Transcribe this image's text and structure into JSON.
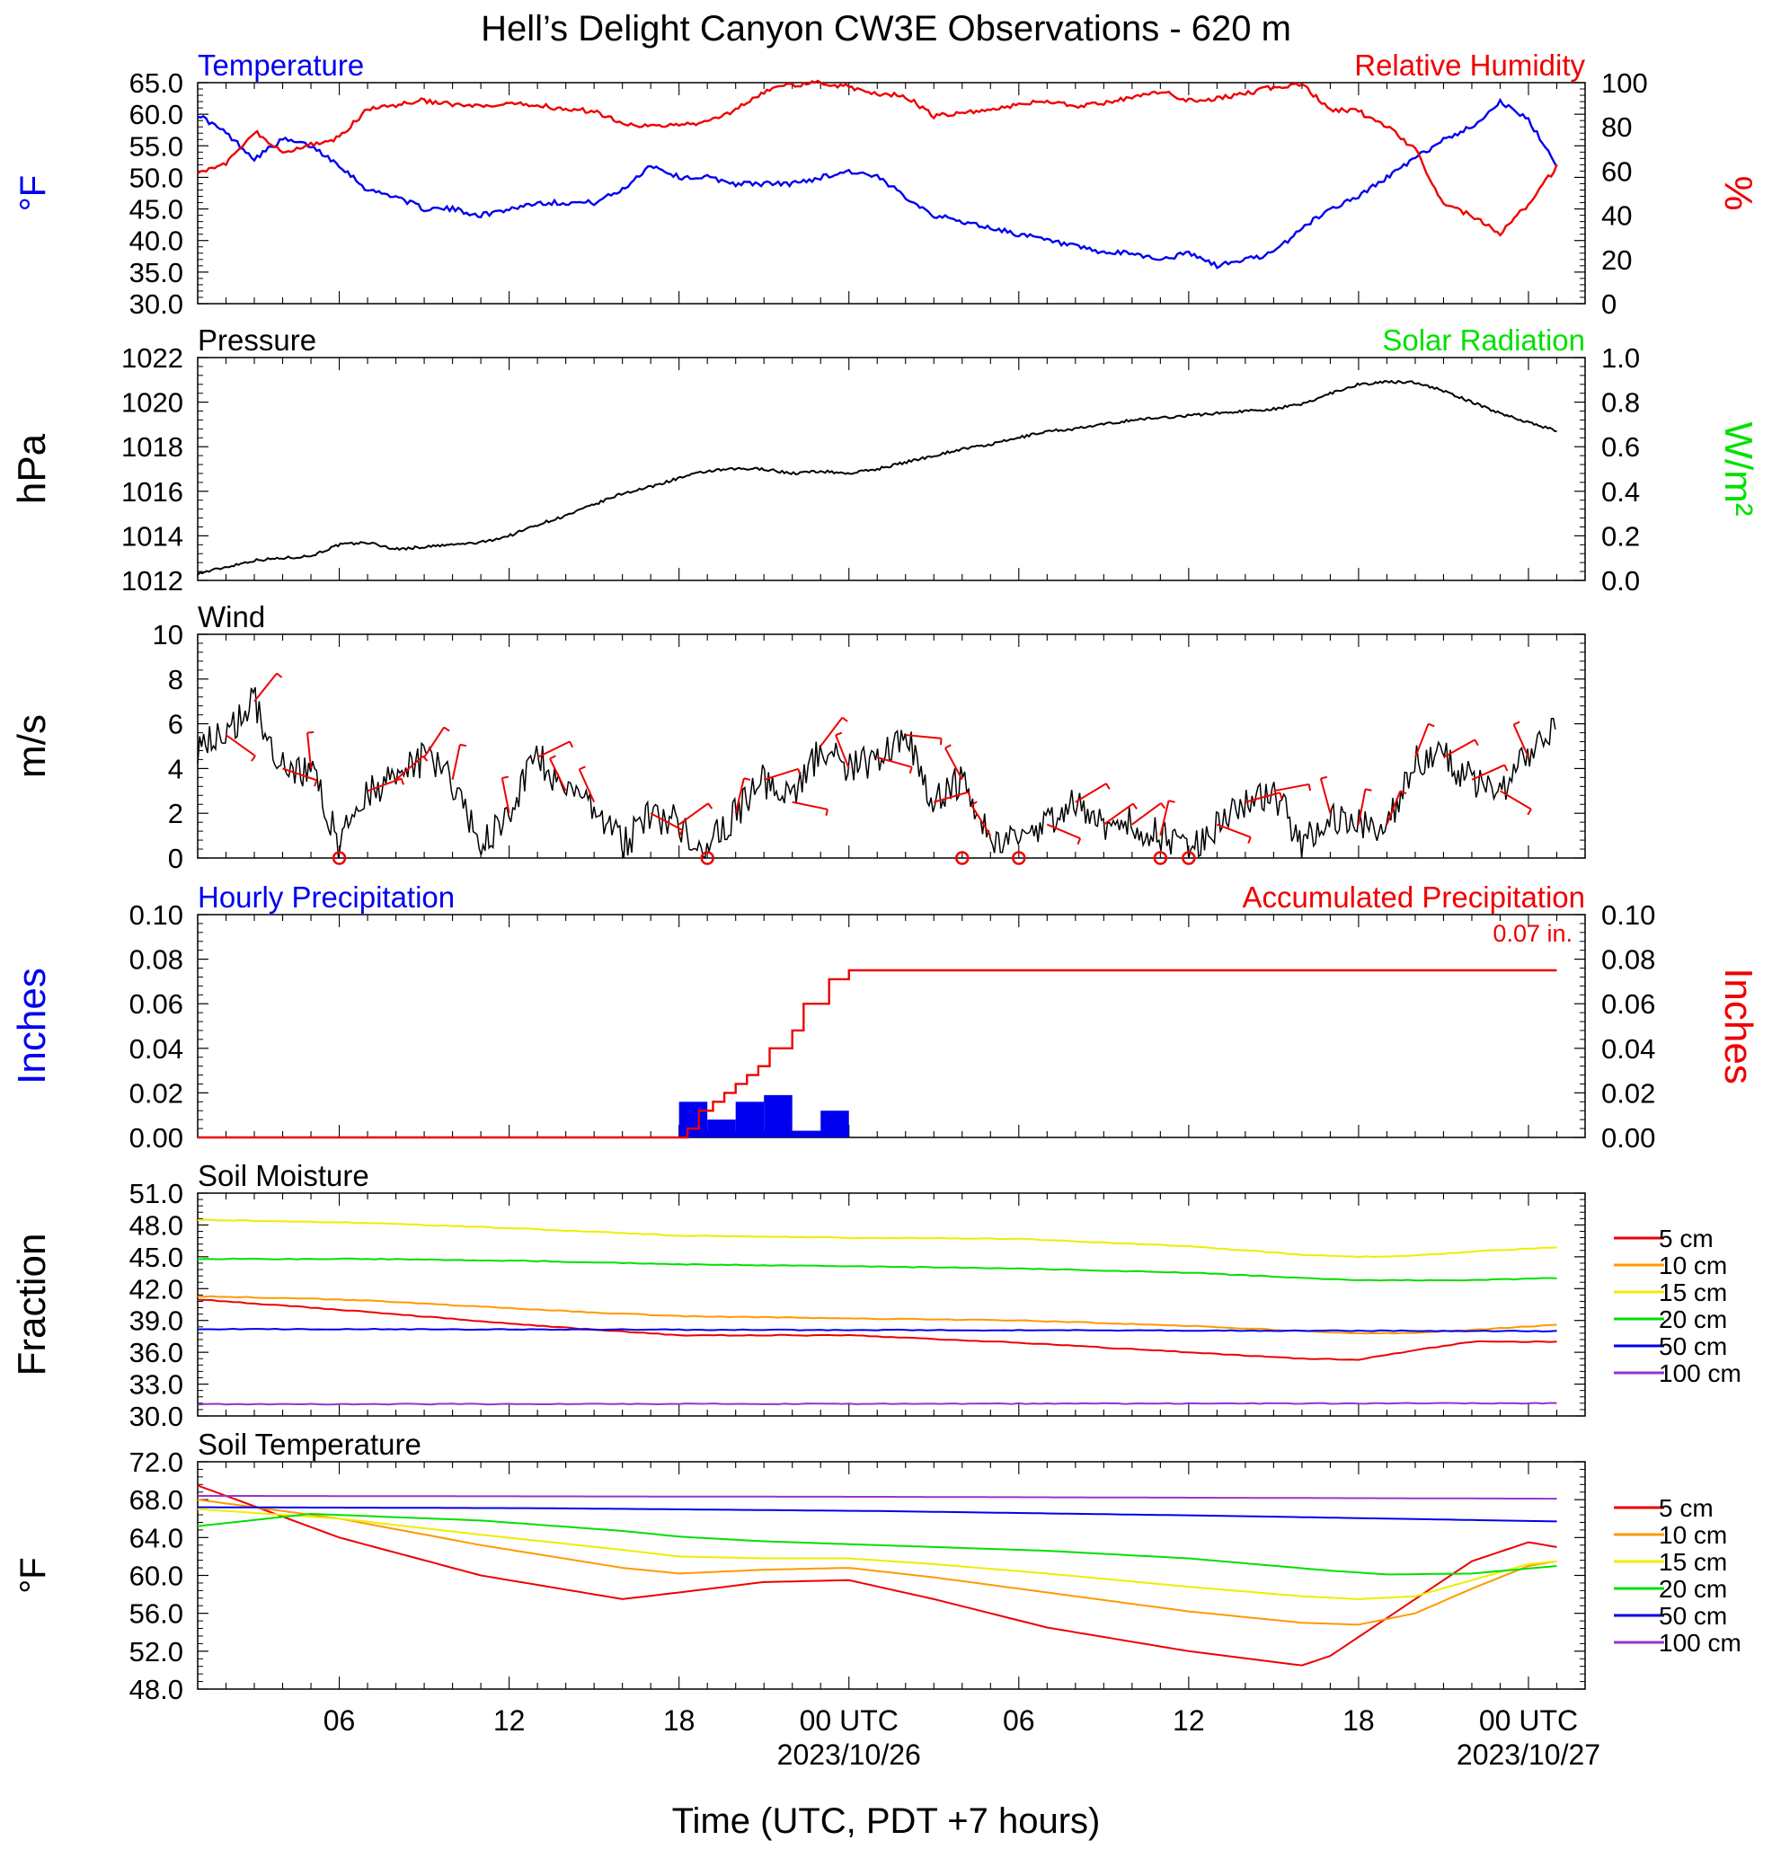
{
  "title": "Hell’s Delight Canyon CW3E Observations - 620 m",
  "xaxis": {
    "label": "Time (UTC, PDT +7 hours)",
    "range_hours": [
      0,
      49
    ],
    "ticks": [
      {
        "h": 5,
        "label": "06"
      },
      {
        "h": 11,
        "label": "12"
      },
      {
        "h": 17,
        "label": "18"
      },
      {
        "h": 23,
        "label": "00 UTC",
        "date": "2023/10/26"
      },
      {
        "h": 29,
        "label": "06"
      },
      {
        "h": 35,
        "label": "12"
      },
      {
        "h": 41,
        "label": "18"
      },
      {
        "h": 47,
        "label": "00 UTC",
        "date": "2023/10/27"
      }
    ]
  },
  "colors": {
    "blue": "#0000ee",
    "red": "#ee0000",
    "green": "#00e000",
    "black": "#000000",
    "orange": "#ff9900",
    "yellow": "#eeee00",
    "purple": "#9933cc"
  },
  "panels": [
    {
      "id": "temp-rh",
      "title_left": "Temperature",
      "title_left_color": "#0000ee",
      "title_right": "Relative Humidity",
      "title_right_color": "#ee0000",
      "ylabel_left": "°F",
      "ylabel_left_color": "#0000ee",
      "ylabel_right": "%",
      "ylabel_right_color": "#ee0000",
      "yticks_left": [
        "30.0",
        "35.0",
        "40.0",
        "45.0",
        "50.0",
        "55.0",
        "60.0",
        "65.0"
      ],
      "yticks_right": [
        "0",
        "20",
        "40",
        "60",
        "80",
        "100"
      ]
    },
    {
      "id": "pressure",
      "title_left": "Pressure",
      "title_left_color": "#000000",
      "title_right": "Solar Radiation",
      "title_right_color": "#00e000",
      "ylabel_left": "hPa",
      "ylabel_left_color": "#000000",
      "ylabel_right": "W/m²",
      "ylabel_right_color": "#00e000",
      "yticks_left": [
        "1012",
        "1014",
        "1016",
        "1018",
        "1020",
        "1022"
      ],
      "yticks_right": [
        "0.0",
        "0.2",
        "0.4",
        "0.6",
        "0.8",
        "1.0"
      ]
    },
    {
      "id": "wind",
      "title_left": "Wind",
      "title_left_color": "#000000",
      "title_right": "",
      "title_right_color": "#000000",
      "ylabel_left": "m/s",
      "ylabel_left_color": "#000000",
      "ylabel_right": "",
      "ylabel_right_color": "#000000",
      "yticks_left": [
        "0",
        "2",
        "4",
        "6",
        "8",
        "10"
      ],
      "yticks_right": []
    },
    {
      "id": "precip",
      "title_left": "Hourly Precipitation",
      "title_left_color": "#0000ee",
      "title_right": "Accumulated Precipitation",
      "title_right_color": "#ee0000",
      "ylabel_left": "Inches",
      "ylabel_left_color": "#0000ee",
      "ylabel_right": "Inches",
      "ylabel_right_color": "#ee0000",
      "yticks_left": [
        "0.00",
        "0.02",
        "0.04",
        "0.06",
        "0.08",
        "0.10"
      ],
      "yticks_right": [
        "0.00",
        "0.02",
        "0.04",
        "0.06",
        "0.08",
        "0.10"
      ],
      "annotation": "0.07 in."
    },
    {
      "id": "soil-moisture",
      "title_left": "Soil Moisture",
      "title_left_color": "#000000",
      "title_right": "",
      "title_right_color": "#000000",
      "ylabel_left": "Fraction",
      "ylabel_left_color": "#000000",
      "ylabel_right": "",
      "ylabel_right_color": "#000000",
      "yticks_left": [
        "30.0",
        "33.0",
        "36.0",
        "39.0",
        "42.0",
        "45.0",
        "48.0",
        "51.0"
      ],
      "yticks_right": []
    },
    {
      "id": "soil-temp",
      "title_left": "Soil Temperature",
      "title_left_color": "#000000",
      "title_right": "",
      "title_right_color": "#000000",
      "ylabel_left": "°F",
      "ylabel_left_color": "#000000",
      "ylabel_right": "",
      "ylabel_right_color": "#000000",
      "yticks_left": [
        "48.0",
        "52.0",
        "56.0",
        "60.0",
        "64.0",
        "68.0",
        "72.0"
      ],
      "yticks_right": []
    }
  ],
  "legend_depths": [
    {
      "label": "5 cm",
      "color": "#ee0000"
    },
    {
      "label": "10 cm",
      "color": "#ff9900"
    },
    {
      "label": "15 cm",
      "color": "#eeee00"
    },
    {
      "label": "20 cm",
      "color": "#00e000"
    },
    {
      "label": "50 cm",
      "color": "#0000ee"
    },
    {
      "label": "100 cm",
      "color": "#9933cc"
    }
  ],
  "chart_data": [
    {
      "type": "line",
      "title": "Temperature / Relative Humidity",
      "ylim_left": [
        30,
        65
      ],
      "ylim_right": [
        0,
        100
      ],
      "series": [
        {
          "name": "Temperature",
          "axis": "left",
          "color": "#0000ee",
          "x": [
            0,
            1,
            2,
            3,
            4,
            5,
            6,
            7,
            8,
            9,
            10,
            11,
            12,
            13,
            14,
            15,
            16,
            17,
            18,
            19,
            20,
            21,
            22,
            23,
            24,
            25,
            26,
            27,
            28,
            29,
            30,
            31,
            32,
            33,
            34,
            35,
            36,
            37,
            38,
            39,
            40,
            41,
            42,
            43,
            44,
            45,
            46,
            47,
            48
          ],
          "y": [
            60,
            57,
            53,
            56,
            55,
            52,
            48,
            47,
            45,
            45,
            44,
            45,
            46,
            46,
            46,
            48,
            52,
            50,
            50,
            49,
            49,
            49,
            50,
            51,
            50,
            47,
            44,
            43,
            42,
            41,
            40,
            39,
            38,
            38,
            37,
            38,
            36,
            37,
            38,
            42,
            45,
            47,
            50,
            53,
            56,
            58,
            62,
            59,
            52
          ]
        },
        {
          "name": "Relative Humidity",
          "axis": "right",
          "color": "#ee0000",
          "x": [
            0,
            1,
            2,
            3,
            4,
            5,
            6,
            7,
            8,
            9,
            10,
            11,
            12,
            13,
            14,
            15,
            16,
            17,
            18,
            19,
            20,
            21,
            22,
            23,
            24,
            25,
            26,
            27,
            28,
            29,
            30,
            31,
            32,
            33,
            34,
            35,
            36,
            37,
            38,
            39,
            40,
            41,
            42,
            43,
            44,
            45,
            46,
            47,
            48
          ],
          "y": [
            60,
            63,
            78,
            68,
            72,
            75,
            88,
            90,
            92,
            90,
            89,
            90,
            90,
            88,
            87,
            82,
            80,
            81,
            82,
            88,
            96,
            99,
            100,
            98,
            95,
            94,
            85,
            86,
            88,
            90,
            92,
            89,
            91,
            93,
            96,
            92,
            93,
            95,
            98,
            99,
            88,
            87,
            80,
            70,
            45,
            40,
            32,
            45,
            62
          ]
        }
      ]
    },
    {
      "type": "line",
      "title": "Pressure",
      "ylim": [
        1012,
        1022
      ],
      "series": [
        {
          "name": "Pressure",
          "color": "#000000",
          "x": [
            0,
            1,
            2,
            3,
            4,
            5,
            6,
            7,
            8,
            9,
            10,
            11,
            12,
            13,
            14,
            15,
            16,
            17,
            18,
            19,
            20,
            21,
            22,
            23,
            24,
            25,
            26,
            27,
            28,
            29,
            30,
            31,
            32,
            33,
            34,
            35,
            36,
            37,
            38,
            39,
            40,
            41,
            42,
            43,
            44,
            45,
            46,
            47,
            48
          ],
          "y": [
            1012.3,
            1012.6,
            1012.9,
            1013.0,
            1013.1,
            1013.6,
            1013.7,
            1013.4,
            1013.5,
            1013.6,
            1013.7,
            1014.0,
            1014.5,
            1014.9,
            1015.4,
            1015.9,
            1016.2,
            1016.6,
            1016.9,
            1017.0,
            1017.0,
            1016.8,
            1016.9,
            1016.8,
            1017.0,
            1017.3,
            1017.6,
            1017.9,
            1018.1,
            1018.4,
            1018.7,
            1018.8,
            1019.0,
            1019.2,
            1019.3,
            1019.4,
            1019.5,
            1019.6,
            1019.7,
            1019.9,
            1020.4,
            1020.8,
            1020.9,
            1020.9,
            1020.5,
            1020.0,
            1019.5,
            1019.1,
            1018.7
          ]
        }
      ]
    },
    {
      "type": "line",
      "title": "Wind",
      "ylim": [
        0,
        10
      ],
      "series": [
        {
          "name": "Wind speed",
          "color": "#000000",
          "x": [
            0,
            1,
            2,
            3,
            4,
            5,
            6,
            7,
            8,
            9,
            10,
            11,
            12,
            13,
            14,
            15,
            16,
            17,
            18,
            19,
            20,
            21,
            22,
            23,
            24,
            25,
            26,
            27,
            28,
            29,
            30,
            31,
            32,
            33,
            34,
            35,
            36,
            37,
            38,
            39,
            40,
            41,
            42,
            43,
            44,
            45,
            46,
            47,
            48
          ],
          "y": [
            5,
            5.5,
            7,
            4,
            4,
            0.5,
            3,
            3.5,
            4.5,
            3.5,
            0.5,
            2,
            4.5,
            3,
            2.5,
            0.5,
            2,
            1.5,
            0.5,
            2,
            3.5,
            2.5,
            5,
            4,
            4.5,
            5.5,
            2.5,
            3.5,
            1,
            0.5,
            1.5,
            2.5,
            1.5,
            1.5,
            1,
            0.5,
            1.5,
            2.5,
            3,
            0.5,
            2,
            1.5,
            1.5,
            4.5,
            4.5,
            3.5,
            3,
            4.5,
            6
          ]
        }
      ],
      "calm_markers_hours": [
        5,
        18,
        27,
        29,
        34,
        35
      ]
    },
    {
      "type": "bar",
      "title": "Hourly Precipitation",
      "ylim": [
        0,
        0.1
      ],
      "x": [
        17,
        18,
        19,
        20,
        21,
        22
      ],
      "values": [
        0.016,
        0.008,
        0.016,
        0.019,
        0.003,
        0.012
      ],
      "accumulated": {
        "name": "Accumulated Precipitation",
        "x": [
          0,
          17,
          17.3,
          17.7,
          18.2,
          18.6,
          19.0,
          19.4,
          19.8,
          20.2,
          20.6,
          21.0,
          21.4,
          22.0,
          22.3,
          23,
          48
        ],
        "y": [
          0,
          0,
          0.004,
          0.012,
          0.016,
          0.02,
          0.024,
          0.028,
          0.032,
          0.04,
          0.04,
          0.048,
          0.06,
          0.06,
          0.071,
          0.075,
          0.075
        ]
      }
    },
    {
      "type": "line",
      "title": "Soil Moisture",
      "ylim": [
        30,
        51
      ],
      "series": [
        {
          "name": "5 cm",
          "color": "#ee0000",
          "x": [
            0,
            6,
            12,
            17,
            23,
            29,
            35,
            39,
            41,
            43,
            45,
            48
          ],
          "y": [
            41,
            39.8,
            38.5,
            37.6,
            37.6,
            36.9,
            36.0,
            35.4,
            35.3,
            36.2,
            37.0,
            37.0
          ]
        },
        {
          "name": "10 cm",
          "color": "#ff9900",
          "x": [
            0,
            6,
            12,
            17,
            23,
            29,
            35,
            39,
            41,
            43,
            45,
            48
          ],
          "y": [
            41.3,
            40.9,
            40.0,
            39.4,
            39.2,
            39.0,
            38.5,
            38.0,
            37.8,
            37.8,
            38.1,
            38.6
          ]
        },
        {
          "name": "15 cm",
          "color": "#eeee00",
          "x": [
            0,
            6,
            12,
            17,
            23,
            29,
            35,
            39,
            41,
            43,
            45,
            48
          ],
          "y": [
            48.5,
            48.2,
            47.6,
            47.0,
            46.8,
            46.7,
            46.0,
            45.2,
            45.0,
            45.1,
            45.5,
            45.9
          ]
        },
        {
          "name": "20 cm",
          "color": "#00e000",
          "x": [
            0,
            6,
            12,
            17,
            23,
            29,
            35,
            39,
            41,
            43,
            45,
            48
          ],
          "y": [
            44.8,
            44.8,
            44.6,
            44.3,
            44.1,
            43.9,
            43.5,
            43.0,
            42.8,
            42.8,
            42.8,
            43.0
          ]
        },
        {
          "name": "50 cm",
          "color": "#0000ee",
          "x": [
            0,
            48
          ],
          "y": [
            38.2,
            38.0
          ]
        },
        {
          "name": "100 cm",
          "color": "#9933cc",
          "x": [
            0,
            48
          ],
          "y": [
            31.1,
            31.2
          ]
        }
      ]
    },
    {
      "type": "line",
      "title": "Soil Temperature",
      "ylim": [
        48,
        72
      ],
      "series": [
        {
          "name": "5 cm",
          "color": "#ee0000",
          "x": [
            0,
            5,
            10,
            15,
            17,
            20,
            23,
            26,
            30,
            35,
            39,
            40,
            42,
            45,
            47,
            48
          ],
          "y": [
            69.5,
            64.0,
            60.0,
            57.5,
            58.2,
            59.3,
            59.5,
            57.5,
            54.5,
            52.0,
            50.5,
            51.5,
            55.5,
            61.5,
            63.5,
            63.0
          ]
        },
        {
          "name": "10 cm",
          "color": "#ff9900",
          "x": [
            0,
            5,
            10,
            15,
            17,
            20,
            23,
            26,
            30,
            35,
            39,
            41,
            43,
            45,
            47,
            48
          ],
          "y": [
            68.0,
            66.0,
            63.2,
            60.8,
            60.2,
            60.6,
            60.8,
            59.8,
            58.2,
            56.2,
            55.0,
            54.8,
            56.0,
            58.6,
            61.0,
            61.5
          ]
        },
        {
          "name": "15 cm",
          "color": "#eeee00",
          "x": [
            0,
            5,
            10,
            15,
            17,
            20,
            23,
            26,
            30,
            35,
            39,
            41,
            43,
            45,
            47,
            48
          ],
          "y": [
            67.0,
            66.0,
            64.3,
            62.7,
            62.0,
            61.8,
            61.8,
            61.2,
            60.2,
            58.8,
            57.8,
            57.5,
            57.8,
            59.5,
            61.2,
            61.5
          ]
        },
        {
          "name": "20 cm",
          "color": "#00e000",
          "x": [
            0,
            4,
            10,
            15,
            17,
            20,
            23,
            26,
            30,
            35,
            40,
            42,
            45,
            48
          ],
          "y": [
            65.2,
            66.5,
            65.8,
            64.7,
            64.1,
            63.6,
            63.3,
            63.0,
            62.6,
            61.8,
            60.5,
            60.1,
            60.2,
            61.0
          ]
        },
        {
          "name": "50 cm",
          "color": "#0000ee",
          "x": [
            0,
            12,
            24,
            36,
            48
          ],
          "y": [
            67.2,
            67.1,
            66.8,
            66.3,
            65.7
          ]
        },
        {
          "name": "100 cm",
          "color": "#9933cc",
          "x": [
            0,
            24,
            48
          ],
          "y": [
            68.4,
            68.3,
            68.1
          ]
        }
      ]
    }
  ]
}
